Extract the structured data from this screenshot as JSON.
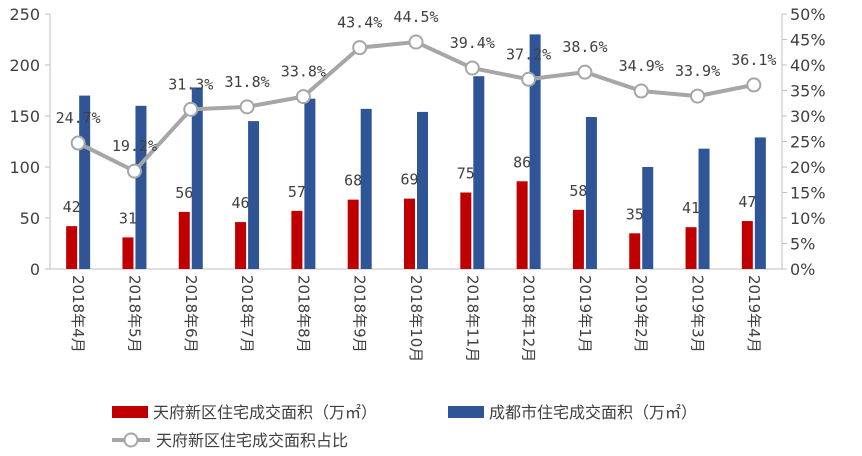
{
  "chart_data": {
    "type": "bar+line",
    "categories": [
      "2018年4月",
      "2018年5月",
      "2018年6月",
      "2018年7月",
      "2018年8月",
      "2018年9月",
      "2018年10月",
      "2018年11月",
      "2018年12月",
      "2019年1月",
      "2019年2月",
      "2019年3月",
      "2019年4月"
    ],
    "series": [
      {
        "name": "天府新区住宅成交面积（万㎡）",
        "type": "bar",
        "axis": "left",
        "color": "#C00000",
        "values": [
          42,
          31,
          56,
          46,
          57,
          68,
          69,
          75,
          86,
          58,
          35,
          41,
          47
        ],
        "labels": [
          "42",
          "31",
          "56",
          "46",
          "57",
          "68",
          "69",
          "75",
          "86",
          "58",
          "35",
          "41",
          "47"
        ]
      },
      {
        "name": "成都市住宅成交面积（万㎡）",
        "type": "bar",
        "axis": "left",
        "color": "#2F5597",
        "values": [
          170,
          160,
          178,
          145,
          167,
          157,
          154,
          189,
          230,
          149,
          100,
          118,
          129
        ]
      },
      {
        "name": "天府新区住宅成交面积占比",
        "type": "line",
        "axis": "right",
        "color": "#A6A6A6",
        "values": [
          24.7,
          19.2,
          31.3,
          31.8,
          33.8,
          43.4,
          44.5,
          39.4,
          37.2,
          38.6,
          34.9,
          33.9,
          36.1
        ],
        "labels": [
          "24.7%",
          "19.2%",
          "31.3%",
          "31.8%",
          "33.8%",
          "43.4%",
          "44.5%",
          "39.4%",
          "37.2%",
          "38.6%",
          "34.9%",
          "33.9%",
          "36.1%"
        ]
      }
    ],
    "y_left": {
      "min": 0,
      "max": 250,
      "ticks": [
        "0",
        "50",
        "100",
        "150",
        "200",
        "250"
      ]
    },
    "y_right": {
      "min": 0,
      "max": 50,
      "ticks": [
        "0%",
        "5%",
        "10%",
        "15%",
        "20%",
        "25%",
        "30%",
        "35%",
        "40%",
        "45%",
        "50%"
      ]
    },
    "legend_position": "bottom"
  }
}
